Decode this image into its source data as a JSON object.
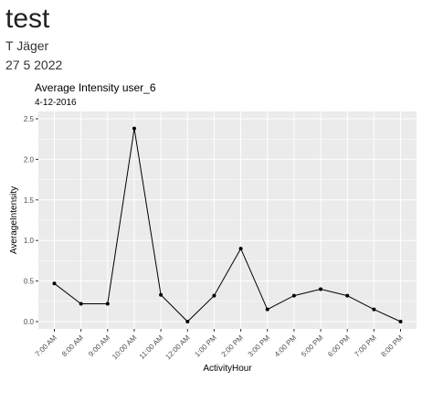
{
  "document": {
    "title": "test",
    "author": "T Jäger",
    "date": "27 5 2022"
  },
  "chart_data": {
    "type": "line",
    "title": "Average Intensity user_6",
    "subtitle": "4-12-2016",
    "xlabel": "ActivityHour",
    "ylabel": "AverageIntensity",
    "categories": [
      "7:00 AM",
      "8:00 AM",
      "9:00 AM",
      "10:00 AM",
      "11:00 AM",
      "12:00 AM",
      "1:00 PM",
      "2:00 PM",
      "3:00 PM",
      "4:00 PM",
      "5:00 PM",
      "6:00 PM",
      "7:00 PM",
      "8:00 PM"
    ],
    "values": [
      0.47,
      0.22,
      0.22,
      2.38,
      0.33,
      0.0,
      0.32,
      0.9,
      0.15,
      0.32,
      0.4,
      0.32,
      0.15,
      0.0
    ],
    "ylim": [
      0,
      2.5
    ],
    "yticks": [
      "0.0",
      "0.5",
      "1.0",
      "1.5",
      "2.0",
      "2.5"
    ],
    "grid": true,
    "colors": {
      "panel": "#ebebeb",
      "grid": "#ffffff",
      "line": "#000000"
    }
  }
}
